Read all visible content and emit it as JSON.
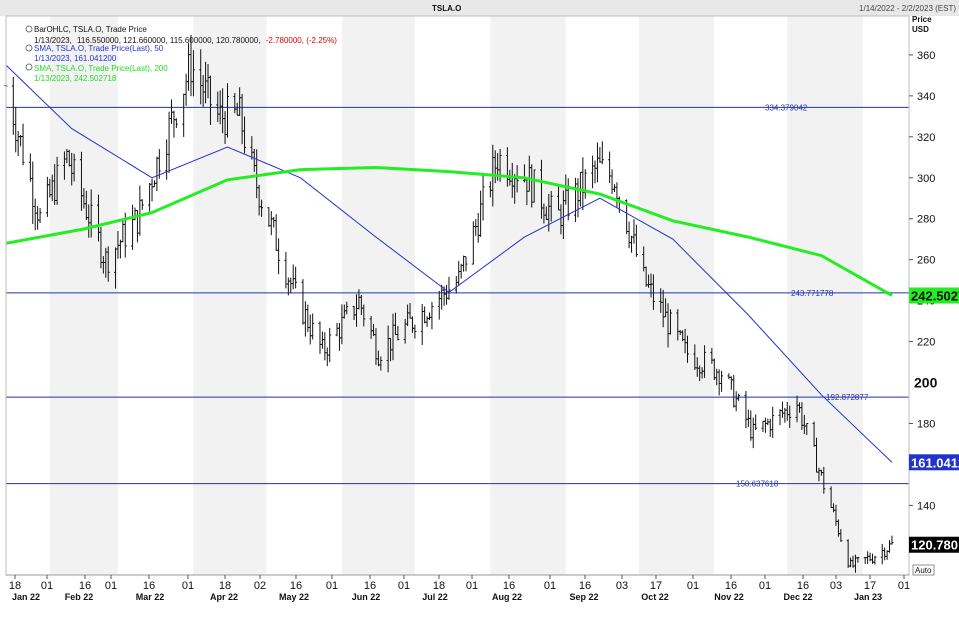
{
  "header": {
    "symbol": "TSLA.O",
    "date_range": "1/14/2022 - 2/2/2023 (EST)"
  },
  "legend": {
    "line1": "BarOHLC, TSLA.O, Trade Price",
    "line1_date": "1/13/2023,",
    "line1_values": "116.550000, 121.660000, 115.600000, 120.780000,",
    "line1_change": "-2.780000, (-2.25%)",
    "line2": "SMA, TSLA.O, Trade Price(Last),  50",
    "line2_values": "1/13/2023, 161.041200",
    "line3": "SMA, TSLA.O, Trade Price(Last),  200",
    "line3_values": "1/13/2023, 242.502718"
  },
  "axis": {
    "price_label": "Price",
    "currency_label": "USD",
    "auto_label": "Auto"
  },
  "colors": {
    "bars": "#111111",
    "sma50": "#2233cc",
    "sma200": "#22ee22",
    "hline": "#2233aa",
    "stripe": "#f2f2f2",
    "change_negative": "#dd0000",
    "last_price_bg": "#000000"
  },
  "chart_data": {
    "type": "line",
    "title": "TSLA.O",
    "ylabel": "Price USD",
    "ylim": [
      106,
      379
    ],
    "y_ticks": [
      140,
      160,
      180,
      200,
      220,
      240,
      260,
      280,
      300,
      320,
      340,
      360
    ],
    "x_range": [
      "2022-01-14",
      "2023-01-20"
    ],
    "x_tick_days": [
      "18",
      "01",
      "16",
      "01",
      "16",
      "01",
      "18",
      "02",
      "16",
      "01",
      "16",
      "01",
      "18",
      "01",
      "16",
      "01",
      "16",
      "03",
      "17",
      "01",
      "16",
      "01",
      "16",
      "03",
      "17",
      "01"
    ],
    "x_tick_months": [
      "Jan 22",
      "Feb 22",
      "Mar 22",
      "Apr 22",
      "May 22",
      "Jun 22",
      "Jul 22",
      "Aug 22",
      "Sep 22",
      "Oct 22",
      "Nov 22",
      "Dec 22",
      "Jan 23"
    ],
    "horizontal_lines": [
      {
        "value": 334.379042,
        "label": "334.379042"
      },
      {
        "value": 243.771778,
        "label": "243.771778"
      },
      {
        "value": 192.872877,
        "label": "192.872877"
      },
      {
        "value": 150.637618,
        "label": "150.637618"
      }
    ],
    "price_markers": [
      {
        "value": 242.502718,
        "label": "242.5027",
        "series": "sma200"
      },
      {
        "value": 200,
        "label": "200",
        "series": "axis"
      },
      {
        "value": 161.0412,
        "label": "161.0412",
        "series": "sma50"
      },
      {
        "value": 120.78,
        "label": "120.780",
        "series": "close"
      }
    ],
    "series": [
      {
        "name": "SMA, TSLA.O, Trade Price(Last),  200",
        "x": [
          "2022-01-14",
          "2022-02-15",
          "2022-03-15",
          "2022-04-15",
          "2022-05-15",
          "2022-06-15",
          "2022-07-15",
          "2022-08-15",
          "2022-09-15",
          "2022-10-15",
          "2022-11-15",
          "2022-12-15",
          "2023-01-13"
        ],
        "values": [
          268,
          275,
          283,
          299,
          304,
          305,
          303,
          300,
          292,
          279,
          271,
          262,
          242.5
        ]
      },
      {
        "name": "SMA, TSLA.O, Trade Price(Last),  50",
        "x": [
          "2022-01-14",
          "2022-02-10",
          "2022-03-15",
          "2022-04-15",
          "2022-05-15",
          "2022-06-15",
          "2022-07-15",
          "2022-08-15",
          "2022-09-15",
          "2022-10-15",
          "2022-11-15",
          "2022-12-15",
          "2023-01-13"
        ],
        "values": [
          355,
          324,
          300,
          315,
          300,
          271,
          244,
          271,
          290,
          270,
          233,
          194,
          161
        ]
      },
      {
        "name": "BarOHLC, TSLA.O, Trade Price",
        "x": [
          "2022-01-14",
          "2022-01-28",
          "2022-02-08",
          "2022-02-24",
          "2022-03-09",
          "2022-03-31",
          "2022-04-11",
          "2022-04-20",
          "2022-04-26",
          "2022-05-12",
          "2022-05-24",
          "2022-06-08",
          "2022-06-16",
          "2022-06-30",
          "2022-07-19",
          "2022-08-04",
          "2022-08-16",
          "2022-08-28",
          "2022-09-14",
          "2022-09-21",
          "2022-10-03",
          "2022-10-20",
          "2022-11-04",
          "2022-11-17",
          "2022-12-05",
          "2022-12-27",
          "2023-01-05",
          "2023-01-13"
        ],
        "values": [
          345,
          280,
          310,
          260,
          280,
          355,
          330,
          330,
          300,
          245,
          215,
          240,
          215,
          230,
          250,
          310,
          300,
          280,
          305,
          300,
          250,
          215,
          205,
          175,
          190,
          110,
          115,
          120.78
        ]
      }
    ]
  }
}
